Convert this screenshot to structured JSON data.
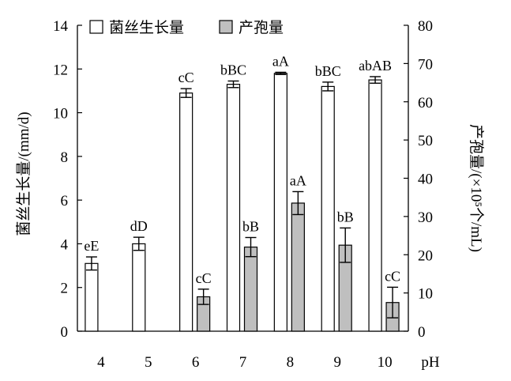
{
  "chart_data": {
    "type": "bar",
    "categories": [
      "4",
      "5",
      "6",
      "7",
      "8",
      "9",
      "10"
    ],
    "xlabel": "pH",
    "ylabel_left": "菌丝生长量/(mm/d)",
    "ylabel_right": "产孢量/(×10⁵个/mL)",
    "ylim_left": [
      0,
      14
    ],
    "yticks_left": [
      "0",
      "2",
      "4",
      "6",
      "8",
      "10",
      "12",
      "14"
    ],
    "ylim_right": [
      0,
      80
    ],
    "yticks_right": [
      "0",
      "10",
      "20",
      "30",
      "40",
      "50",
      "60",
      "70",
      "80"
    ],
    "legend_position": "top",
    "grid": false,
    "series": [
      {
        "name": "菌丝生长量",
        "axis": "left",
        "color": "#ffffff",
        "values": [
          3.1,
          4.0,
          10.9,
          11.3,
          11.8,
          11.2,
          11.5
        ],
        "errors": [
          0.3,
          0.3,
          0.2,
          0.15,
          0.05,
          0.2,
          0.15
        ],
        "labels": [
          "eE",
          "dD",
          "cC",
          "bBC",
          "aA",
          "bBC",
          "abAB"
        ]
      },
      {
        "name": "产孢量",
        "axis": "right",
        "color": "#bfbfbf",
        "values": [
          0,
          0,
          9,
          22,
          33.5,
          22.5,
          7.5
        ],
        "errors": [
          0,
          0,
          2,
          2.5,
          3,
          4.5,
          4
        ],
        "labels": [
          "",
          "",
          "cC",
          "bB",
          "aA",
          "bB",
          "cC"
        ]
      }
    ]
  }
}
